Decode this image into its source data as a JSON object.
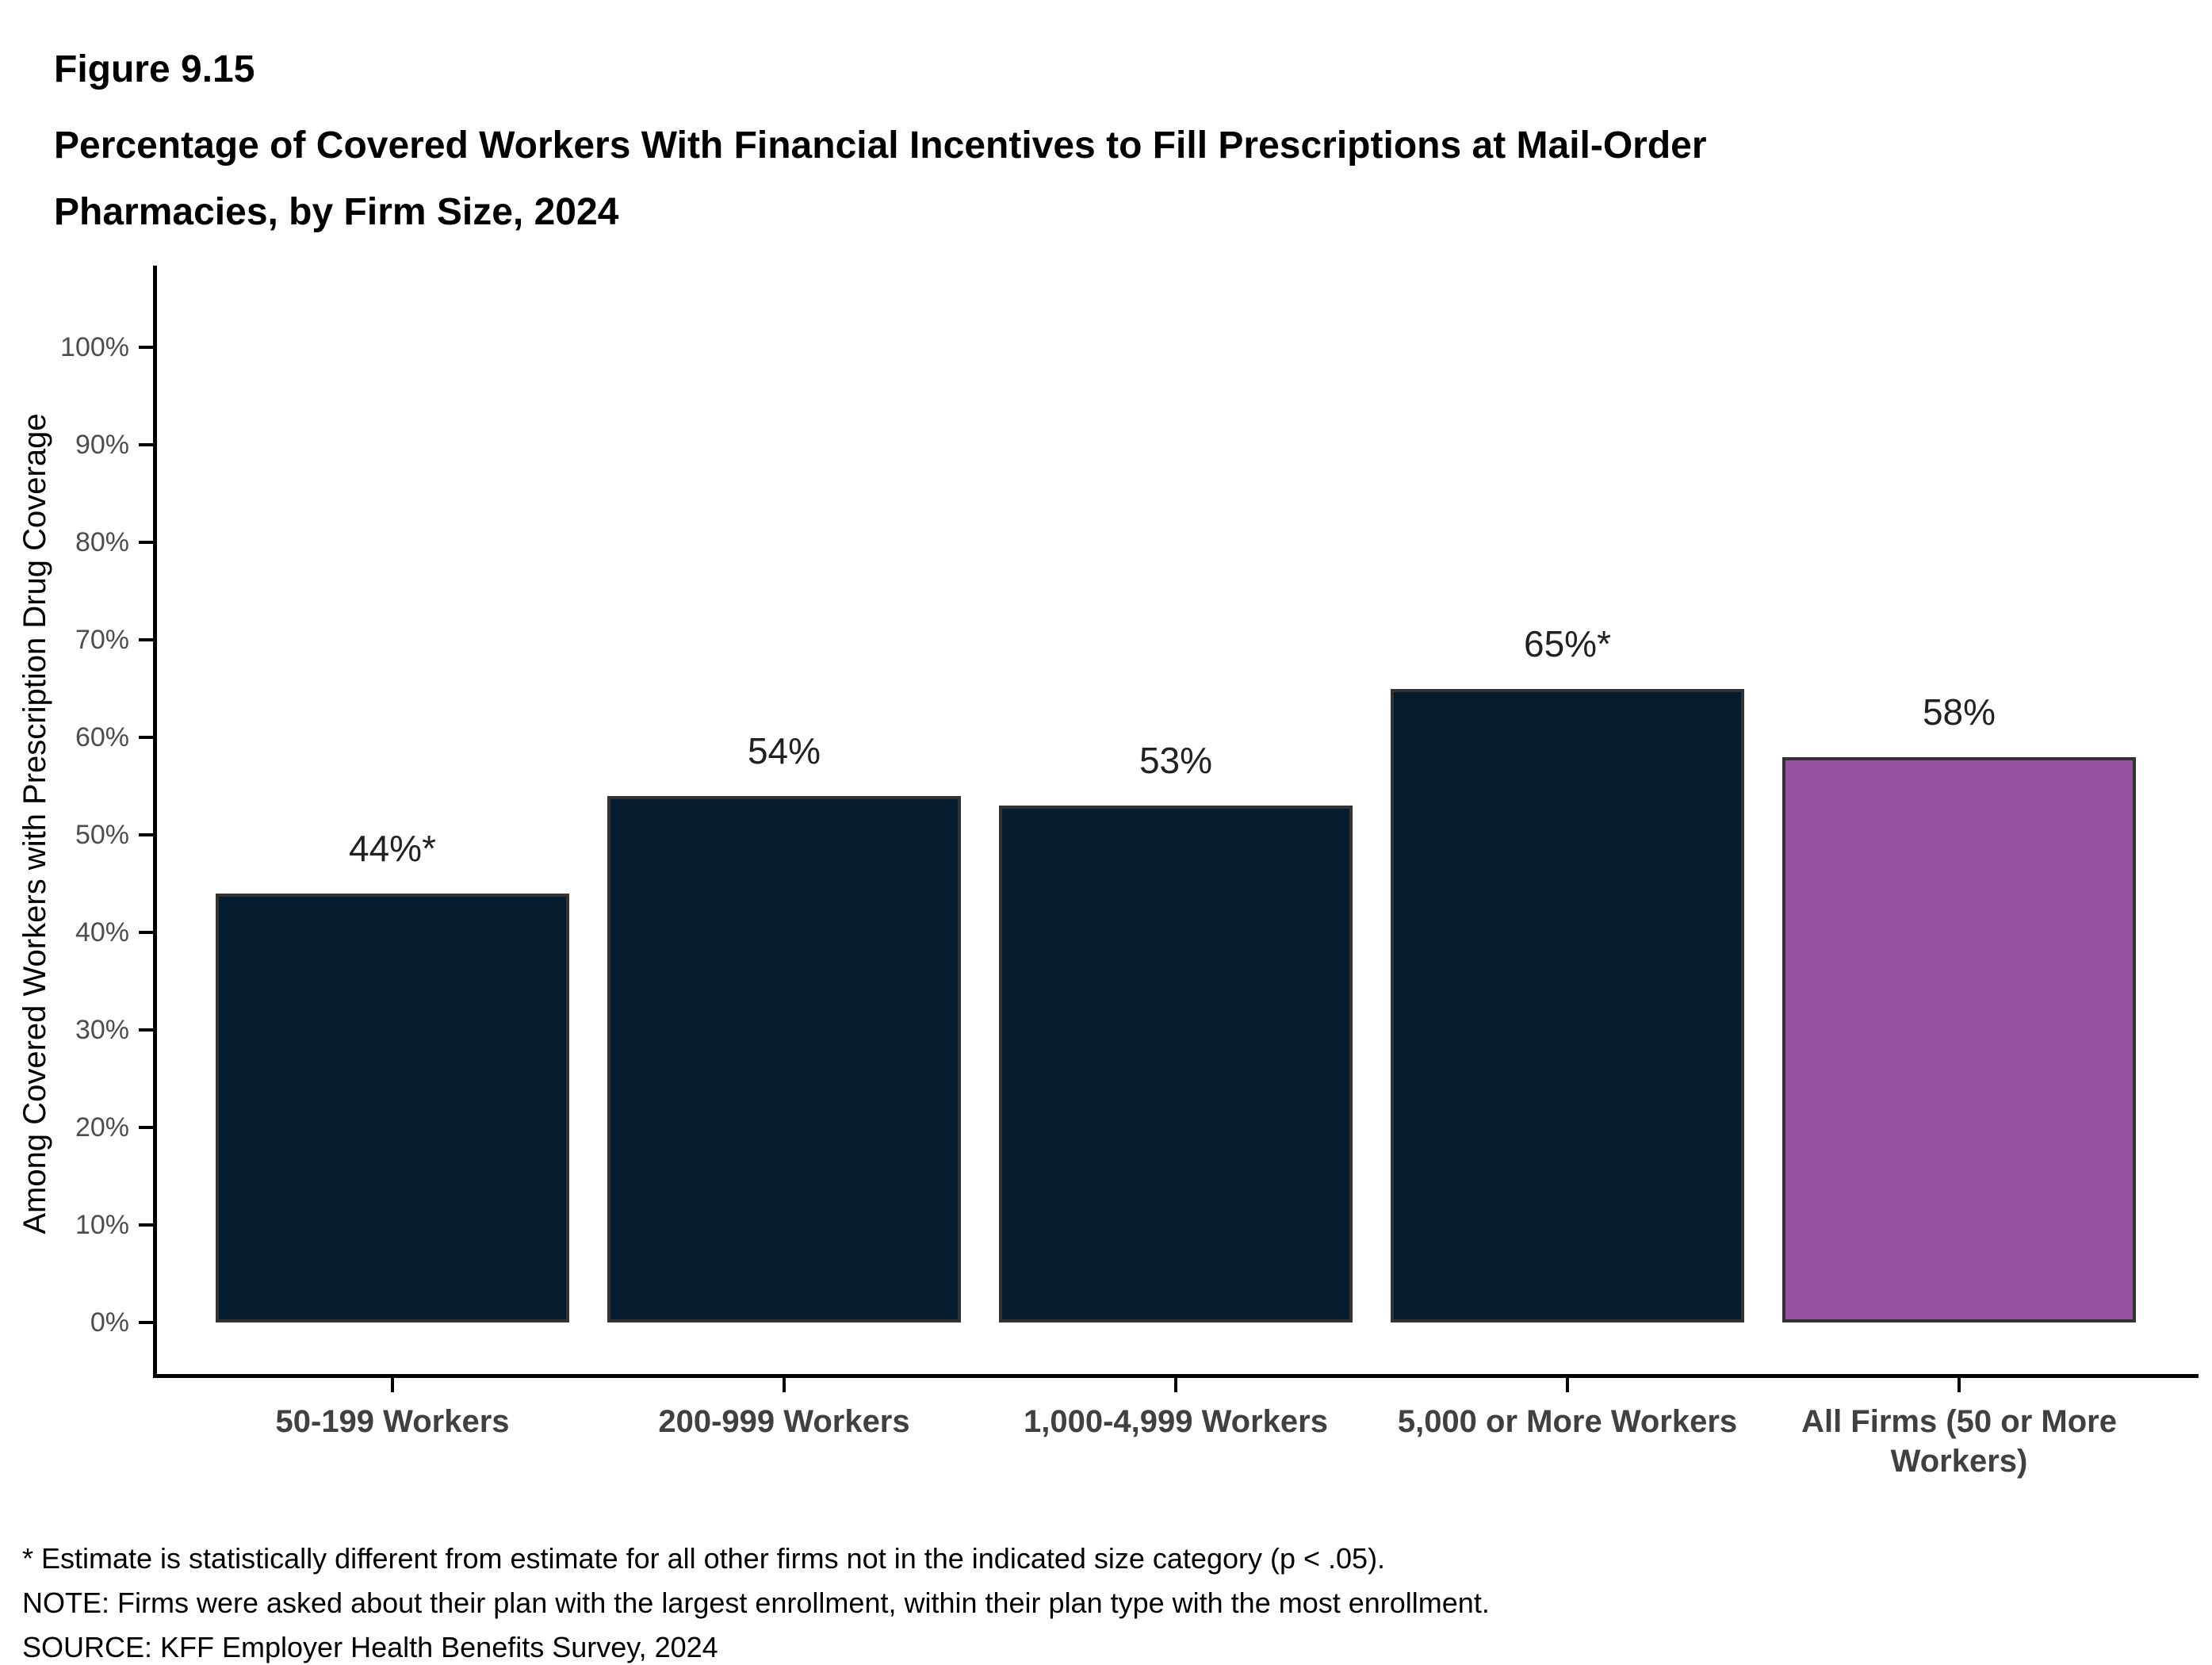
{
  "header": {
    "figure_label": "Figure 9.15",
    "title": "Percentage of Covered Workers With Financial Incentives to Fill Prescriptions at Mail-Order Pharmacies, by Firm Size, 2024"
  },
  "chart_data": {
    "type": "bar",
    "categories": [
      "50-199 Workers",
      "200-999 Workers",
      "1,000-4,999 Workers",
      "5,000 or More Workers",
      "All Firms (50 or More Workers)"
    ],
    "values": [
      44,
      54,
      53,
      65,
      58
    ],
    "value_labels": [
      "44%*",
      "54%",
      "53%",
      "65%*",
      "58%"
    ],
    "title": "Percentage of Covered Workers With Financial Incentives to Fill Prescriptions at Mail-Order Pharmacies, by Firm Size, 2024",
    "xlabel": "",
    "ylabel": "Among Covered Workers with Prescription Drug Coverage",
    "ylim": [
      0,
      100
    ],
    "ytick_step": 10,
    "ytick_suffix": "%",
    "grid": false,
    "legend": "none",
    "bar_colors": [
      "#051c2e",
      "#051c2e",
      "#051c2e",
      "#051c2e",
      "#9552a0"
    ],
    "bar_border_color": "#333333",
    "axis_color": "#000000",
    "ytick_label_color": "#4d4d4d",
    "xtick_label_color": "#404040"
  },
  "footnotes": {
    "asterisk": "* Estimate is statistically different from estimate for all other firms not in the indicated size category (p < .05).",
    "note": "NOTE: Firms were asked about their plan with the largest enrollment, within their plan type with the most enrollment.",
    "source": "SOURCE: KFF Employer Health Benefits Survey, 2024"
  }
}
